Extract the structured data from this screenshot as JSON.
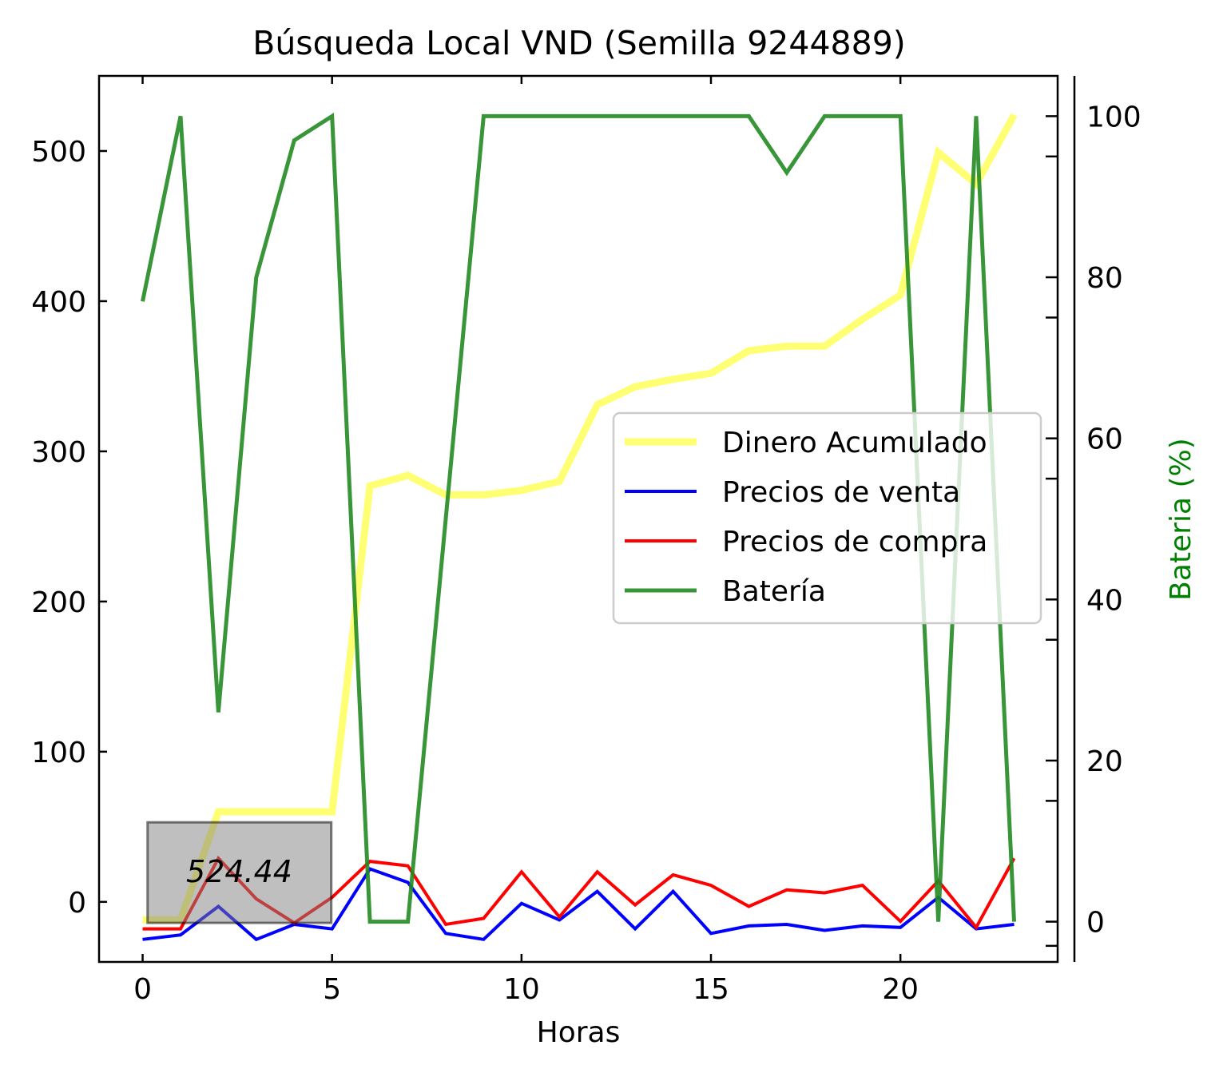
{
  "chart_data": {
    "type": "line",
    "title": "Búsqueda Local VND (Semilla 9244889)",
    "xlabel": "Horas",
    "ylabel": "",
    "y2label": "Bateria (%)",
    "xlim": [
      -1.15,
      24.15
    ],
    "ylim": [
      -40,
      550
    ],
    "y2lim": [
      -5,
      105
    ],
    "xticks": [
      0,
      5,
      10,
      15,
      20
    ],
    "yticks": [
      0,
      100,
      200,
      300,
      400,
      500
    ],
    "y2ticks": [
      0,
      20,
      40,
      60,
      80,
      100
    ],
    "grid": false,
    "legend_position": "center-right",
    "x": [
      0,
      1,
      2,
      3,
      4,
      5,
      6,
      7,
      8,
      9,
      10,
      11,
      12,
      13,
      14,
      15,
      16,
      17,
      18,
      19,
      20,
      21,
      22,
      23
    ],
    "series": [
      {
        "name": "Dinero Acumulado",
        "axis": "left",
        "color": "#ffff00",
        "opacity": 0.55,
        "width": 9,
        "values": [
          -12,
          -12,
          60,
          60,
          60,
          60,
          277,
          284,
          271,
          271,
          274,
          280,
          331,
          343,
          348,
          352,
          367,
          370,
          370,
          388,
          404,
          499,
          478,
          524
        ]
      },
      {
        "name": "Precios de venta",
        "axis": "left",
        "color": "#0000ff",
        "opacity": 1,
        "width": 4,
        "values": [
          -25,
          -22,
          -3,
          -25,
          -15,
          -18,
          22,
          13,
          -21,
          -25,
          -1,
          -12,
          7,
          -18,
          7,
          -21,
          -16,
          -15,
          -19,
          -16,
          -17,
          3,
          -18,
          -15
        ]
      },
      {
        "name": "Precios de compra",
        "axis": "left",
        "color": "#ff0000",
        "opacity": 1,
        "width": 4,
        "values": [
          -18,
          -18,
          29,
          2,
          -14,
          3,
          27,
          24,
          -15,
          -11,
          20,
          -10,
          20,
          -2,
          18,
          11,
          -3,
          8,
          6,
          11,
          -13,
          14,
          -17,
          29
        ]
      },
      {
        "name": "Batería",
        "axis": "right",
        "color": "#228b22",
        "opacity": 0.9,
        "width": 5,
        "values": [
          77,
          100,
          26,
          80,
          97,
          100,
          0,
          0,
          50,
          100,
          100,
          100,
          100,
          100,
          100,
          100,
          100,
          93,
          100,
          100,
          100,
          0,
          100,
          0
        ]
      }
    ],
    "annotation": {
      "text": "524.44",
      "box_fill": "#808080",
      "box_opacity": 0.5,
      "box_x": [
        0.13,
        4.98
      ],
      "box_y": [
        -14,
        53
      ],
      "text_at": [
        2.55,
        20
      ]
    }
  }
}
